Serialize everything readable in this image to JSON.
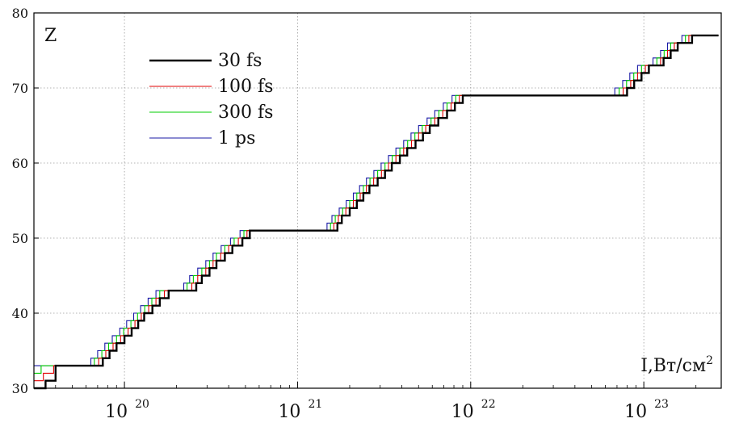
{
  "chart_data": {
    "type": "line",
    "title": "",
    "ylabel": "Z",
    "xlabel_parts": {
      "base": "I,Вт/см",
      "sup": "2"
    },
    "x_scale": "log",
    "xlim": [
      3e+19,
      2.8e+23
    ],
    "ylim": [
      30,
      80
    ],
    "y_ticks": [
      30,
      40,
      50,
      60,
      70,
      80
    ],
    "x_ticks": [
      {
        "value": 1e+20,
        "base": "10",
        "exp": "20"
      },
      {
        "value": 1e+21,
        "base": "10",
        "exp": "21"
      },
      {
        "value": 1e+22,
        "base": "10",
        "exp": "22"
      },
      {
        "value": 1e+23,
        "base": "10",
        "exp": "23"
      }
    ],
    "grid": true,
    "legend_position": "top-left",
    "series": [
      {
        "name": "30 fs",
        "color": "#000000",
        "points": [
          [
            3e+19,
            30
          ],
          [
            3.5e+19,
            31
          ],
          [
            4e+19,
            33
          ],
          [
            7.5e+19,
            34
          ],
          [
            8.2e+19,
            35
          ],
          [
            9e+19,
            36
          ],
          [
            1e+20,
            37
          ],
          [
            1.1e+20,
            38
          ],
          [
            1.2e+20,
            39
          ],
          [
            1.3e+20,
            40
          ],
          [
            1.45e+20,
            41
          ],
          [
            1.6e+20,
            42
          ],
          [
            1.8e+20,
            43
          ],
          [
            2.6e+20,
            44
          ],
          [
            2.8e+20,
            45
          ],
          [
            3.1e+20,
            46
          ],
          [
            3.4e+20,
            47
          ],
          [
            3.8e+20,
            48
          ],
          [
            4.2e+20,
            49
          ],
          [
            4.8e+20,
            50
          ],
          [
            5.3e+20,
            51
          ],
          [
            1.7e+21,
            52
          ],
          [
            1.8e+21,
            53
          ],
          [
            2e+21,
            54
          ],
          [
            2.2e+21,
            55
          ],
          [
            2.4e+21,
            56
          ],
          [
            2.6e+21,
            57
          ],
          [
            2.9e+21,
            58
          ],
          [
            3.2e+21,
            59
          ],
          [
            3.5e+21,
            60
          ],
          [
            3.9e+21,
            61
          ],
          [
            4.3e+21,
            62
          ],
          [
            4.8e+21,
            63
          ],
          [
            5.3e+21,
            64
          ],
          [
            5.8e+21,
            65
          ],
          [
            6.5e+21,
            66
          ],
          [
            7.3e+21,
            67
          ],
          [
            8.1e+21,
            68
          ],
          [
            9e+21,
            69
          ],
          [
            8e+22,
            70
          ],
          [
            8.8e+22,
            71
          ],
          [
            9.7e+22,
            72
          ],
          [
            1.07e+23,
            73
          ],
          [
            1.3e+23,
            74
          ],
          [
            1.43e+23,
            75
          ],
          [
            1.57e+23,
            76
          ],
          [
            1.9e+23,
            77
          ],
          [
            2.7e+23,
            77
          ]
        ]
      },
      {
        "name": "100 fs",
        "color": "#e00000",
        "points": [
          [
            3e+19,
            31
          ],
          [
            3.4e+19,
            32
          ],
          [
            3.9e+19,
            33
          ],
          [
            7.1e+19,
            34
          ],
          [
            7.8e+19,
            35
          ],
          [
            8.6e+19,
            36
          ],
          [
            9.5e+19,
            37
          ],
          [
            1.05e+20,
            38
          ],
          [
            1.15e+20,
            39
          ],
          [
            1.25e+20,
            40
          ],
          [
            1.38e+20,
            41
          ],
          [
            1.52e+20,
            42
          ],
          [
            1.7e+20,
            43
          ],
          [
            2.45e+20,
            44
          ],
          [
            2.65e+20,
            45
          ],
          [
            2.95e+20,
            46
          ],
          [
            3.25e+20,
            47
          ],
          [
            3.6e+20,
            48
          ],
          [
            4e+20,
            49
          ],
          [
            4.55e+20,
            50
          ],
          [
            5.1e+20,
            51
          ],
          [
            1.62e+21,
            52
          ],
          [
            1.72e+21,
            53
          ],
          [
            1.9e+21,
            54
          ],
          [
            2.1e+21,
            55
          ],
          [
            2.3e+21,
            56
          ],
          [
            2.5e+21,
            57
          ],
          [
            2.75e+21,
            58
          ],
          [
            3.05e+21,
            59
          ],
          [
            3.35e+21,
            60
          ],
          [
            3.7e+21,
            61
          ],
          [
            4.1e+21,
            62
          ],
          [
            4.55e+21,
            63
          ],
          [
            5e+21,
            64
          ],
          [
            5.5e+21,
            65
          ],
          [
            6.2e+21,
            66
          ],
          [
            6.9e+21,
            67
          ],
          [
            7.7e+21,
            68
          ],
          [
            8.6e+21,
            69
          ],
          [
            7.6e+22,
            70
          ],
          [
            8.4e+22,
            71
          ],
          [
            9.2e+22,
            72
          ],
          [
            1.02e+23,
            73
          ],
          [
            1.25e+23,
            74
          ],
          [
            1.37e+23,
            75
          ],
          [
            1.5e+23,
            76
          ],
          [
            1.82e+23,
            77
          ],
          [
            2.7e+23,
            77
          ]
        ]
      },
      {
        "name": "300 fs",
        "color": "#00cc00",
        "points": [
          [
            3e+19,
            32
          ],
          [
            3.3e+19,
            33
          ],
          [
            6.7e+19,
            34
          ],
          [
            7.4e+19,
            35
          ],
          [
            8.1e+19,
            36
          ],
          [
            9e+19,
            37
          ],
          [
            9.9e+19,
            38
          ],
          [
            1.09e+20,
            39
          ],
          [
            1.19e+20,
            40
          ],
          [
            1.31e+20,
            41
          ],
          [
            1.44e+20,
            42
          ],
          [
            1.6e+20,
            43
          ],
          [
            2.3e+20,
            44
          ],
          [
            2.5e+20,
            45
          ],
          [
            2.8e+20,
            46
          ],
          [
            3.1e+20,
            47
          ],
          [
            3.4e+20,
            48
          ],
          [
            3.8e+20,
            49
          ],
          [
            4.3e+20,
            50
          ],
          [
            4.9e+20,
            51
          ],
          [
            1.55e+21,
            52
          ],
          [
            1.65e+21,
            53
          ],
          [
            1.82e+21,
            54
          ],
          [
            2e+21,
            55
          ],
          [
            2.2e+21,
            56
          ],
          [
            2.4e+21,
            57
          ],
          [
            2.62e+21,
            58
          ],
          [
            2.9e+21,
            59
          ],
          [
            3.2e+21,
            60
          ],
          [
            3.52e+21,
            61
          ],
          [
            3.9e+21,
            62
          ],
          [
            4.32e+21,
            63
          ],
          [
            4.76e+21,
            64
          ],
          [
            5.25e+21,
            65
          ],
          [
            5.9e+21,
            66
          ],
          [
            6.55e+21,
            67
          ],
          [
            7.3e+21,
            68
          ],
          [
            8.2e+21,
            69
          ],
          [
            7.2e+22,
            70
          ],
          [
            7.95e+22,
            71
          ],
          [
            8.75e+22,
            72
          ],
          [
            9.7e+22,
            73
          ],
          [
            1.19e+23,
            74
          ],
          [
            1.31e+23,
            75
          ],
          [
            1.43e+23,
            76
          ],
          [
            1.74e+23,
            77
          ],
          [
            2.7e+23,
            77
          ]
        ]
      },
      {
        "name": "1 ps",
        "color": "#1a1aa6",
        "points": [
          [
            3e+19,
            33
          ],
          [
            6.4e+19,
            34
          ],
          [
            7e+19,
            35
          ],
          [
            7.7e+19,
            36
          ],
          [
            8.5e+19,
            37
          ],
          [
            9.4e+19,
            38
          ],
          [
            1.03e+20,
            39
          ],
          [
            1.13e+20,
            40
          ],
          [
            1.24e+20,
            41
          ],
          [
            1.37e+20,
            42
          ],
          [
            1.52e+20,
            43
          ],
          [
            2.2e+20,
            44
          ],
          [
            2.38e+20,
            45
          ],
          [
            2.65e+20,
            46
          ],
          [
            2.95e+20,
            47
          ],
          [
            3.25e+20,
            48
          ],
          [
            3.62e+20,
            49
          ],
          [
            4.1e+20,
            50
          ],
          [
            4.65e+20,
            51
          ],
          [
            1.48e+21,
            52
          ],
          [
            1.58e+21,
            53
          ],
          [
            1.74e+21,
            54
          ],
          [
            1.91e+21,
            55
          ],
          [
            2.1e+21,
            56
          ],
          [
            2.28e+21,
            57
          ],
          [
            2.5e+21,
            58
          ],
          [
            2.76e+21,
            59
          ],
          [
            3.04e+21,
            60
          ],
          [
            3.35e+21,
            61
          ],
          [
            3.7e+21,
            62
          ],
          [
            4.1e+21,
            63
          ],
          [
            4.52e+21,
            64
          ],
          [
            5e+21,
            65
          ],
          [
            5.6e+21,
            66
          ],
          [
            6.2e+21,
            67
          ],
          [
            6.95e+21,
            68
          ],
          [
            7.8e+21,
            69
          ],
          [
            6.8e+22,
            70
          ],
          [
            7.55e+22,
            71
          ],
          [
            8.3e+22,
            72
          ],
          [
            9.2e+22,
            73
          ],
          [
            1.13e+23,
            74
          ],
          [
            1.25e+23,
            75
          ],
          [
            1.37e+23,
            76
          ],
          [
            1.66e+23,
            77
          ],
          [
            2.7e+23,
            77
          ]
        ]
      }
    ]
  }
}
